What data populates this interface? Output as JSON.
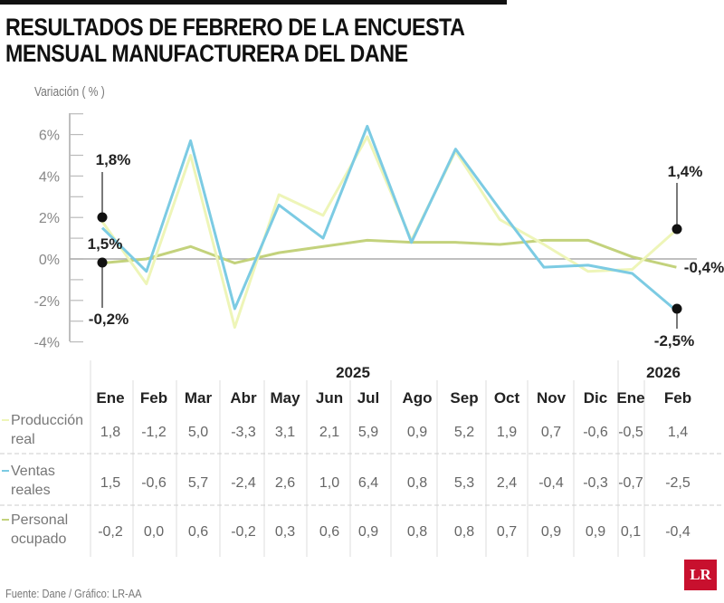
{
  "title_line1": "RESULTADOS DE FEBRERO DE LA ENCUESTA",
  "title_line2": "MENSUAL MANUFACTURERA DEL DANE",
  "footer": "Fuente: Dane / Gráfico: LR-AA",
  "logo": "LR",
  "colors": {
    "produccion": "#eef5b8",
    "ventas": "#7ccbe3",
    "personal": "#c3d27c",
    "axis": "#999999",
    "logo": "#c8102e"
  },
  "chart_data": {
    "type": "line",
    "ylabel": "Variación ( % )",
    "ylim": [
      -4,
      7
    ],
    "yticks": [
      6,
      4,
      2,
      0,
      -2,
      -4
    ],
    "ytick_labels": [
      "6%",
      "4%",
      "2%",
      "0%",
      "-2%",
      "-4%"
    ],
    "years": [
      {
        "label": "2025",
        "span": 12
      },
      {
        "label": "2026",
        "span": 2
      }
    ],
    "categories": [
      "Ene",
      "Feb",
      "Mar",
      "Abr",
      "May",
      "Jun",
      "Jul",
      "Ago",
      "Sep",
      "Oct",
      "Nov",
      "Dic",
      "Ene",
      "Feb"
    ],
    "series": [
      {
        "name": "Producción real",
        "name_lines": [
          "Producción",
          "real"
        ],
        "color_key": "produccion",
        "values": [
          1.8,
          -1.2,
          5.0,
          -3.3,
          3.1,
          2.1,
          5.9,
          0.9,
          5.2,
          1.9,
          0.7,
          -0.6,
          -0.5,
          1.4
        ],
        "labels": [
          "1,8",
          "-1,2",
          "5,0",
          "-3,3",
          "3,1",
          "2,1",
          "5,9",
          "0,9",
          "5,2",
          "1,9",
          "0,7",
          "-0,6",
          "-0,5",
          "1,4"
        ]
      },
      {
        "name": "Ventas reales",
        "name_lines": [
          "Ventas",
          "reales"
        ],
        "color_key": "ventas",
        "values": [
          1.5,
          -0.6,
          5.7,
          -2.4,
          2.6,
          1.0,
          6.4,
          0.8,
          5.3,
          2.4,
          -0.4,
          -0.3,
          -0.7,
          -2.5
        ],
        "labels": [
          "1,5",
          "-0,6",
          "5,7",
          "-2,4",
          "2,6",
          "1,0",
          "6,4",
          "0,8",
          "5,3",
          "2,4",
          "-0,4",
          "-0,3",
          "-0,7",
          "-2,5"
        ]
      },
      {
        "name": "Personal ocupado",
        "name_lines": [
          "Personal",
          "ocupado"
        ],
        "color_key": "personal",
        "values": [
          -0.2,
          0.0,
          0.6,
          -0.2,
          0.3,
          0.6,
          0.9,
          0.8,
          0.8,
          0.7,
          0.9,
          0.9,
          0.1,
          -0.4
        ],
        "labels": [
          "-0,2",
          "0,0",
          "0,6",
          "-0,2",
          "0,3",
          "0,6",
          "0,9",
          "0,8",
          "0,8",
          "0,7",
          "0,9",
          "0,9",
          "0,1",
          "-0,4"
        ]
      }
    ],
    "annotations": [
      {
        "text": "1,8%",
        "series": 0,
        "index": 0
      },
      {
        "text": "1,5%",
        "series": 1,
        "index": 0
      },
      {
        "text": "-0,2%",
        "series": 2,
        "index": 0
      },
      {
        "text": "1,4%",
        "series": 0,
        "index": 13
      },
      {
        "text": "-2,5%",
        "series": 1,
        "index": 13
      },
      {
        "text": "-0,4%",
        "series": 2,
        "index": 13
      }
    ]
  }
}
